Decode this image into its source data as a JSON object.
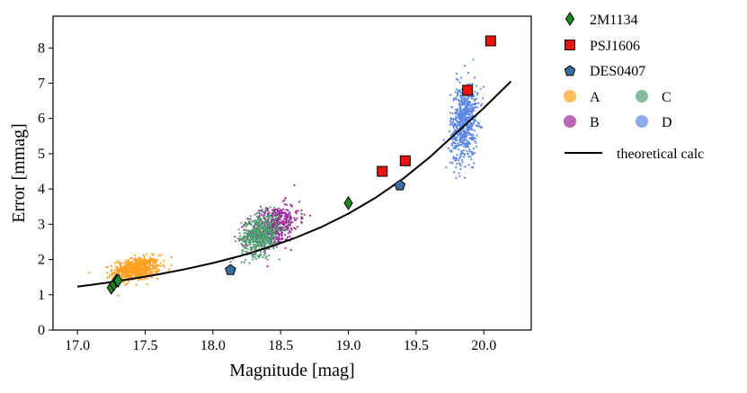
{
  "chart_data": {
    "type": "scatter",
    "xlabel": "Magnitude [mag]",
    "ylabel": "Error [mmag]",
    "xlim": [
      16.82,
      20.35
    ],
    "ylim": [
      0,
      8.9
    ],
    "xticks": [
      "17.0",
      "17.5",
      "18.0",
      "18.5",
      "19.0",
      "19.5",
      "20.0"
    ],
    "yticks": [
      "0",
      "1",
      "2",
      "3",
      "4",
      "5",
      "6",
      "7",
      "8"
    ],
    "grid": false,
    "legend_position": "outside-right",
    "marker_series": [
      {
        "name": "2M1134",
        "marker": "diamond",
        "color": "#1f8a1f",
        "points": [
          {
            "x": 17.25,
            "y": 1.2
          },
          {
            "x": 17.27,
            "y": 1.3
          },
          {
            "x": 17.29,
            "y": 1.4
          },
          {
            "x": 17.3,
            "y": 1.4
          },
          {
            "x": 19.0,
            "y": 3.6
          }
        ]
      },
      {
        "name": "PSJ1606",
        "marker": "square",
        "color": "#e8150e",
        "points": [
          {
            "x": 19.25,
            "y": 4.5
          },
          {
            "x": 19.42,
            "y": 4.8
          },
          {
            "x": 19.88,
            "y": 6.8
          },
          {
            "x": 20.05,
            "y": 8.2
          }
        ]
      },
      {
        "name": "DES0407",
        "marker": "pentagon",
        "color": "#3a6e9e",
        "points": [
          {
            "x": 18.13,
            "y": 1.7
          },
          {
            "x": 19.38,
            "y": 4.1
          }
        ]
      }
    ],
    "cloud_series": [
      {
        "name": "A",
        "color": "#ff9f1c",
        "count": 600,
        "x_range": [
          17.22,
          17.65
        ],
        "y_center": 1.72,
        "y_spread": 0.16,
        "y_slope": 0.5
      },
      {
        "name": "B",
        "color": "#9a2a9a",
        "count": 500,
        "x_range": [
          18.22,
          18.68
        ],
        "y_center": 2.95,
        "y_spread": 0.28,
        "y_slope": 1.3
      },
      {
        "name": "C",
        "color": "#4f9f6f",
        "count": 550,
        "x_range": [
          18.18,
          18.52
        ],
        "y_center": 2.7,
        "y_spread": 0.28,
        "y_slope": 0.8
      },
      {
        "name": "D",
        "color": "#5b86e5",
        "count": 650,
        "x_range": [
          19.73,
          19.98
        ],
        "y_center": 5.9,
        "y_spread": 0.55,
        "y_slope": 2.5
      }
    ],
    "theory_curve": {
      "name": "theoretical calc",
      "color": "#000000",
      "x": [
        17.0,
        17.2,
        17.4,
        17.6,
        17.8,
        18.0,
        18.2,
        18.4,
        18.6,
        18.8,
        19.0,
        19.2,
        19.4,
        19.6,
        19.8,
        20.0,
        20.2
      ],
      "y": [
        1.23,
        1.33,
        1.45,
        1.58,
        1.73,
        1.9,
        2.1,
        2.33,
        2.6,
        2.92,
        3.3,
        3.75,
        4.28,
        4.9,
        5.6,
        6.3,
        7.05
      ]
    }
  }
}
